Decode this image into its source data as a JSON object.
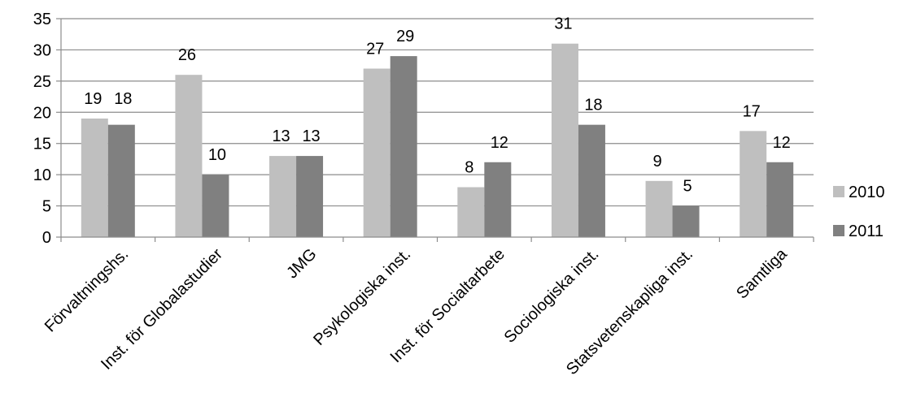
{
  "chart_data": {
    "type": "bar",
    "categories": [
      "Förvaltningshs.",
      "Inst. för Globalastudier",
      "JMG",
      "Psykologiska inst.",
      "Inst. för Socialtarbete",
      "Sociologiska inst.",
      "Statsvetenskapliga inst.",
      "Samtliga"
    ],
    "series": [
      {
        "name": "2010",
        "values": [
          19,
          26,
          13,
          27,
          8,
          31,
          9,
          17
        ],
        "color": "#bfbfbf"
      },
      {
        "name": "2011",
        "values": [
          18,
          10,
          13,
          29,
          12,
          18,
          5,
          12
        ],
        "color": "#808080"
      }
    ],
    "ylim": [
      0,
      35
    ],
    "yticks": [
      0,
      5,
      10,
      15,
      20,
      25,
      30,
      35
    ],
    "grid": true,
    "legend_position": "right",
    "title": "",
    "xlabel": "",
    "ylabel": ""
  }
}
